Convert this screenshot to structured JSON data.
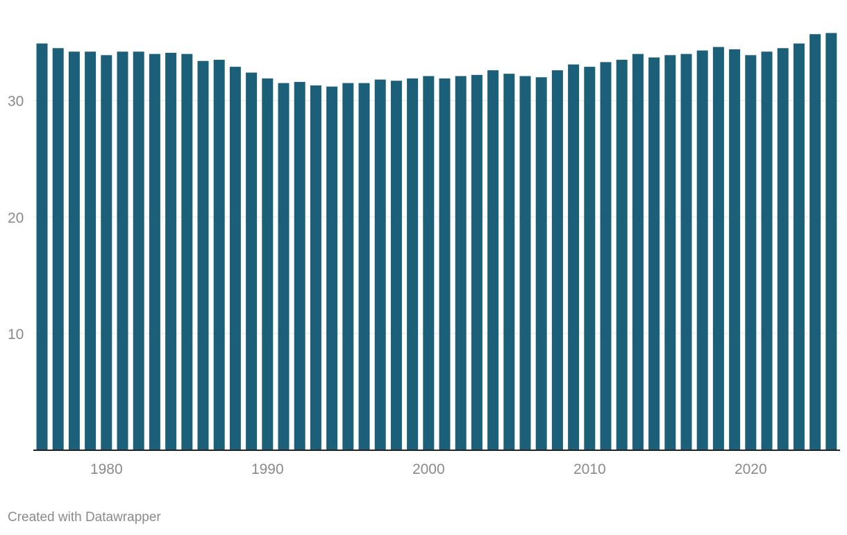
{
  "footer": {
    "credit": "Created with Datawrapper"
  },
  "colors": {
    "bar": "#1b6078",
    "grid": "#e6e6e6",
    "axis": "#222222",
    "tick_text": "#8a8a8a"
  },
  "chart_data": {
    "type": "bar",
    "title": "",
    "xlabel": "",
    "ylabel": "",
    "ylim": [
      0,
      36
    ],
    "y_ticks": [
      10,
      20,
      30
    ],
    "x_ticks": [
      1980,
      1990,
      2000,
      2010,
      2020
    ],
    "grid": true,
    "categories": [
      1976,
      1977,
      1978,
      1979,
      1980,
      1981,
      1982,
      1983,
      1984,
      1985,
      1986,
      1987,
      1988,
      1989,
      1990,
      1991,
      1992,
      1993,
      1994,
      1995,
      1996,
      1997,
      1998,
      1999,
      2000,
      2001,
      2002,
      2003,
      2004,
      2005,
      2006,
      2007,
      2008,
      2009,
      2010,
      2011,
      2012,
      2013,
      2014,
      2015,
      2016,
      2017,
      2018,
      2019,
      2020,
      2021,
      2022,
      2023,
      2024,
      2025
    ],
    "values": [
      34.9,
      34.5,
      34.2,
      34.2,
      33.9,
      34.2,
      34.2,
      34.0,
      34.1,
      34.0,
      33.4,
      33.5,
      32.9,
      32.4,
      31.9,
      31.5,
      31.6,
      31.3,
      31.2,
      31.5,
      31.5,
      31.8,
      31.7,
      31.9,
      32.1,
      31.9,
      32.1,
      32.2,
      32.6,
      32.3,
      32.1,
      32.0,
      32.6,
      33.1,
      32.9,
      33.3,
      33.5,
      34.0,
      33.7,
      33.9,
      34.0,
      34.3,
      34.6,
      34.4,
      33.9,
      34.2,
      34.5,
      34.9,
      35.7,
      35.8
    ]
  }
}
